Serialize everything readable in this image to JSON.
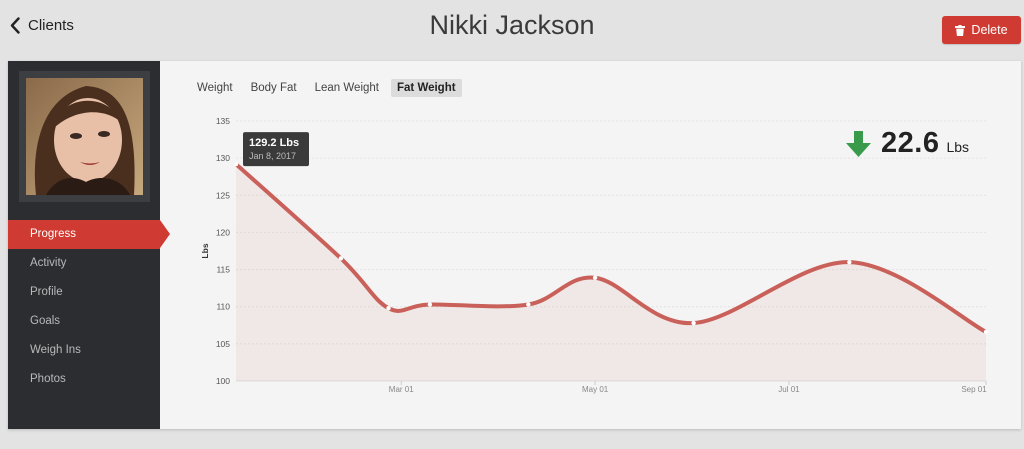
{
  "header": {
    "back_label": "Clients",
    "client_name": "Nikki Jackson",
    "delete_label": "Delete"
  },
  "sidebar": {
    "items": [
      {
        "label": "Progress",
        "active": true
      },
      {
        "label": "Activity"
      },
      {
        "label": "Profile"
      },
      {
        "label": "Goals"
      },
      {
        "label": "Weigh Ins"
      },
      {
        "label": "Photos"
      }
    ]
  },
  "tabs": [
    {
      "label": "Weight"
    },
    {
      "label": "Body Fat"
    },
    {
      "label": "Lean Weight"
    },
    {
      "label": "Fat Weight",
      "active": true
    }
  ],
  "summary": {
    "value": "22.6",
    "unit": "Lbs",
    "direction": "down",
    "color": "#3a9a4c"
  },
  "tooltip": {
    "value": "129.2 Lbs",
    "date": "Jan 8, 2017"
  },
  "colors": {
    "accent": "#cf3b32",
    "line": "#c9605a",
    "sidebar_bg": "#2c2d30"
  },
  "icons": {
    "back": "chevron-left-icon",
    "delete": "trash-icon",
    "trend": "arrow-down-icon"
  },
  "chart_data": {
    "type": "area",
    "ylabel": "Lbs",
    "ylim": [
      100,
      135
    ],
    "yticks": [
      100,
      105,
      110,
      115,
      120,
      125,
      130,
      135
    ],
    "xticks": [
      "Mar 01",
      "May 01",
      "Jul 01",
      "Sep 01"
    ],
    "xtick_dates": [
      "2017-03-01",
      "2017-05-01",
      "2017-07-01",
      "2017-09-01"
    ],
    "xlim": [
      "2017-01-08",
      "2017-09-01"
    ],
    "grid": true,
    "series": [
      {
        "points": [
          {
            "x": "2017-01-08",
            "y": 129.2
          },
          {
            "x": "2017-02-10",
            "y": 116.5
          },
          {
            "x": "2017-02-25",
            "y": 109.8
          },
          {
            "x": "2017-03-10",
            "y": 110.3
          },
          {
            "x": "2017-04-10",
            "y": 110.3
          },
          {
            "x": "2017-05-01",
            "y": 113.9
          },
          {
            "x": "2017-06-01",
            "y": 107.8
          },
          {
            "x": "2017-07-20",
            "y": 116.0
          },
          {
            "x": "2017-09-01",
            "y": 106.6
          }
        ]
      }
    ]
  }
}
